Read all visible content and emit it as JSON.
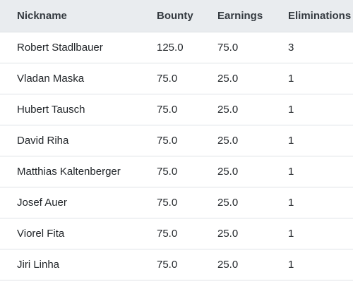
{
  "table": {
    "headers": {
      "nickname": "Nickname",
      "bounty": "Bounty",
      "earnings": "Earnings",
      "eliminations": "Eliminations"
    },
    "rows": [
      {
        "nickname": "Robert Stadlbauer",
        "bounty": "125.0",
        "earnings": "75.0",
        "eliminations": "3"
      },
      {
        "nickname": "Vladan Maska",
        "bounty": "75.0",
        "earnings": "25.0",
        "eliminations": "1"
      },
      {
        "nickname": "Hubert Tausch",
        "bounty": "75.0",
        "earnings": "25.0",
        "eliminations": "1"
      },
      {
        "nickname": "David Riha",
        "bounty": "75.0",
        "earnings": "25.0",
        "eliminations": "1"
      },
      {
        "nickname": "Matthias Kaltenberger",
        "bounty": "75.0",
        "earnings": "25.0",
        "eliminations": "1"
      },
      {
        "nickname": "Josef Auer",
        "bounty": "75.0",
        "earnings": "25.0",
        "eliminations": "1"
      },
      {
        "nickname": "Viorel Fita",
        "bounty": "75.0",
        "earnings": "25.0",
        "eliminations": "1"
      },
      {
        "nickname": "Jiri Linha",
        "bounty": "75.0",
        "earnings": "25.0",
        "eliminations": "1"
      }
    ]
  }
}
